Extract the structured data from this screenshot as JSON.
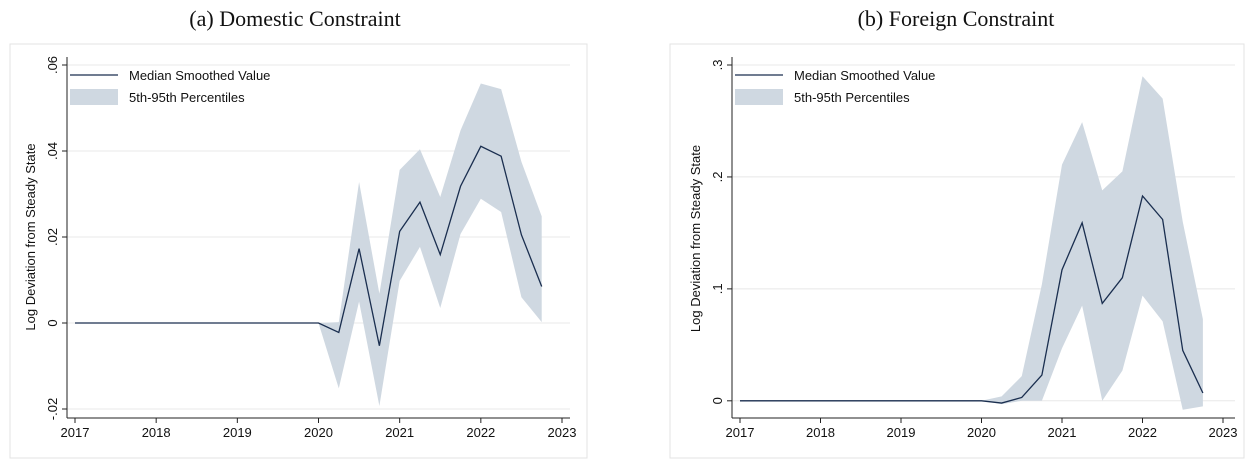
{
  "panels": [
    {
      "title": "(a) Domestic Constraint",
      "chart_data": {
        "type": "line",
        "ylabel": "Log Deviation from Steady State",
        "xlabel": "",
        "xlim": [
          2017,
          2023
        ],
        "ylim": [
          -0.02,
          0.06
        ],
        "xticks": [
          2017,
          2018,
          2019,
          2020,
          2021,
          2022,
          2023
        ],
        "xtick_labels": [
          "2017",
          "2018",
          "2019",
          "2020",
          "2021",
          "2022",
          "2023"
        ],
        "yticks": [
          -0.02,
          0,
          0.02,
          0.04,
          0.06
        ],
        "ytick_labels": [
          "-.02",
          "0",
          ".02",
          ".04",
          ".06"
        ],
        "grid": true,
        "legend_position": "top-left",
        "legend": [
          "Median Smoothed Value",
          "5th-95th Percentiles"
        ],
        "colors": {
          "line": "#1a2e4f",
          "band": "#cfd8e1"
        },
        "x": [
          2017,
          2017.25,
          2017.5,
          2017.75,
          2018,
          2018.25,
          2018.5,
          2018.75,
          2019,
          2019.25,
          2019.5,
          2019.75,
          2020,
          2020.25,
          2020.5,
          2020.75,
          2021,
          2021.25,
          2021.5,
          2021.75,
          2022,
          2022.25,
          2022.5,
          2022.75
        ],
        "series": [
          {
            "name": "Median Smoothed Value",
            "values": [
              0,
              0,
              0,
              0,
              0,
              0,
              0,
              0,
              0,
              0,
              0,
              0,
              0,
              -0.0022,
              0.0173,
              -0.0053,
              0.0213,
              0.0281,
              0.0159,
              0.0318,
              0.0411,
              0.0388,
              0.0205,
              0.0085
            ]
          },
          {
            "name": "5th-95th Percentiles",
            "lower": [
              0,
              0,
              0,
              0,
              0,
              0,
              0,
              0,
              0,
              0,
              0,
              0,
              0,
              -0.0152,
              0.005,
              -0.0193,
              0.0098,
              0.0177,
              0.0035,
              0.0207,
              0.0289,
              0.0258,
              0.006,
              0.0002
            ],
            "upper": [
              0,
              0,
              0,
              0,
              0,
              0,
              0,
              0,
              0,
              0,
              0,
              0,
              0,
              0.0002,
              0.0328,
              0.0068,
              0.0356,
              0.0404,
              0.0293,
              0.0448,
              0.0557,
              0.0544,
              0.0375,
              0.0248
            ]
          }
        ]
      }
    },
    {
      "title": "(b) Foreign Constraint",
      "chart_data": {
        "type": "line",
        "ylabel": "Log Deviation from Steady State",
        "xlabel": "",
        "xlim": [
          2017,
          2023
        ],
        "ylim": [
          -0.01,
          0.3
        ],
        "xticks": [
          2017,
          2018,
          2019,
          2020,
          2021,
          2022,
          2023
        ],
        "xtick_labels": [
          "2017",
          "2018",
          "2019",
          "2020",
          "2021",
          "2022",
          "2023"
        ],
        "yticks": [
          0,
          0.1,
          0.2,
          0.3
        ],
        "ytick_labels": [
          "0",
          ".1",
          ".2",
          ".3"
        ],
        "grid": true,
        "legend_position": "top-left",
        "legend": [
          "Median Smoothed Value",
          "5th-95th Percentiles"
        ],
        "colors": {
          "line": "#1a2e4f",
          "band": "#cfd8e1"
        },
        "x": [
          2017,
          2017.25,
          2017.5,
          2017.75,
          2018,
          2018.25,
          2018.5,
          2018.75,
          2019,
          2019.25,
          2019.5,
          2019.75,
          2020,
          2020.25,
          2020.5,
          2020.75,
          2021,
          2021.25,
          2021.5,
          2021.75,
          2022,
          2022.25,
          2022.5,
          2022.75
        ],
        "series": [
          {
            "name": "Median Smoothed Value",
            "values": [
              0,
              0,
              0,
              0,
              0,
              0,
              0,
              0,
              0,
              0,
              0,
              0,
              0,
              -0.002,
              0.003,
              0.023,
              0.117,
              0.159,
              0.087,
              0.11,
              0.183,
              0.162,
              0.045,
              0.007
            ]
          },
          {
            "name": "5th-95th Percentiles",
            "lower": [
              0,
              0,
              0,
              0,
              0,
              0,
              0,
              0,
              0,
              0,
              0,
              0,
              0,
              -0.003,
              0,
              0,
              0.047,
              0.085,
              0,
              0.027,
              0.094,
              0.071,
              -0.008,
              -0.005
            ],
            "upper": [
              0,
              0,
              0,
              0,
              0,
              0,
              0,
              0,
              0,
              0,
              0,
              0,
              0,
              0.004,
              0.022,
              0.104,
              0.211,
              0.249,
              0.188,
              0.205,
              0.29,
              0.27,
              0.16,
              0.073
            ]
          }
        ]
      }
    }
  ]
}
